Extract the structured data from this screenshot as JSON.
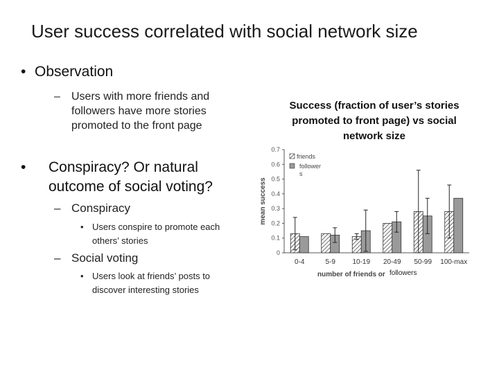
{
  "slide": {
    "title": "User success correlated with social network size",
    "bullet_observation": "Observation",
    "sub_observation": "Users with more friends and followers have more stories promoted to the front page",
    "bullet_conspiracy_question": "Conspiracy? Or natural outcome of social voting?",
    "sub_conspiracy": "Conspiracy",
    "subsub_conspiracy": "Users conspire to promote each others’ stories",
    "sub_social_voting": "Social voting",
    "subsub_social_voting": "Users look at friends’ posts to discover interesting stories",
    "bullet_char": "•",
    "dash_char": "–"
  },
  "chart_heading": "Success (fraction of user’s stories promoted to front page) vs social network size",
  "chart_data": {
    "type": "bar",
    "categories": [
      "0-4",
      "5-9",
      "10-19",
      "20-49",
      "50-99",
      "100-max"
    ],
    "series": [
      {
        "name": "friends",
        "values": [
          0.13,
          0.13,
          0.11,
          0.2,
          0.28,
          0.28
        ],
        "errors": [
          0.11,
          0.0,
          0.02,
          0.0,
          0.28,
          0.18
        ],
        "color": "#ffffff",
        "pattern": "hatch"
      },
      {
        "name": "followers",
        "values": [
          0.11,
          0.12,
          0.15,
          0.21,
          0.25,
          0.37
        ],
        "errors": [
          0.0,
          0.05,
          0.14,
          0.07,
          0.12,
          0.0
        ],
        "color": "#9a9a9a",
        "pattern": "solid"
      }
    ],
    "ylabel": "mean success",
    "xlabel_part1": "number of friends or",
    "xlabel_part2": "followers",
    "legend_label_friends": "friends",
    "legend_label_followers_line1": "follower",
    "legend_label_followers_line2": "s",
    "legend_position": "top-left",
    "ylim": [
      0,
      0.7
    ],
    "yticks": [
      "0",
      "0.1",
      "0.2",
      "0.3",
      "0.4",
      "0.5",
      "0.6",
      "0.7"
    ],
    "grid": false
  }
}
